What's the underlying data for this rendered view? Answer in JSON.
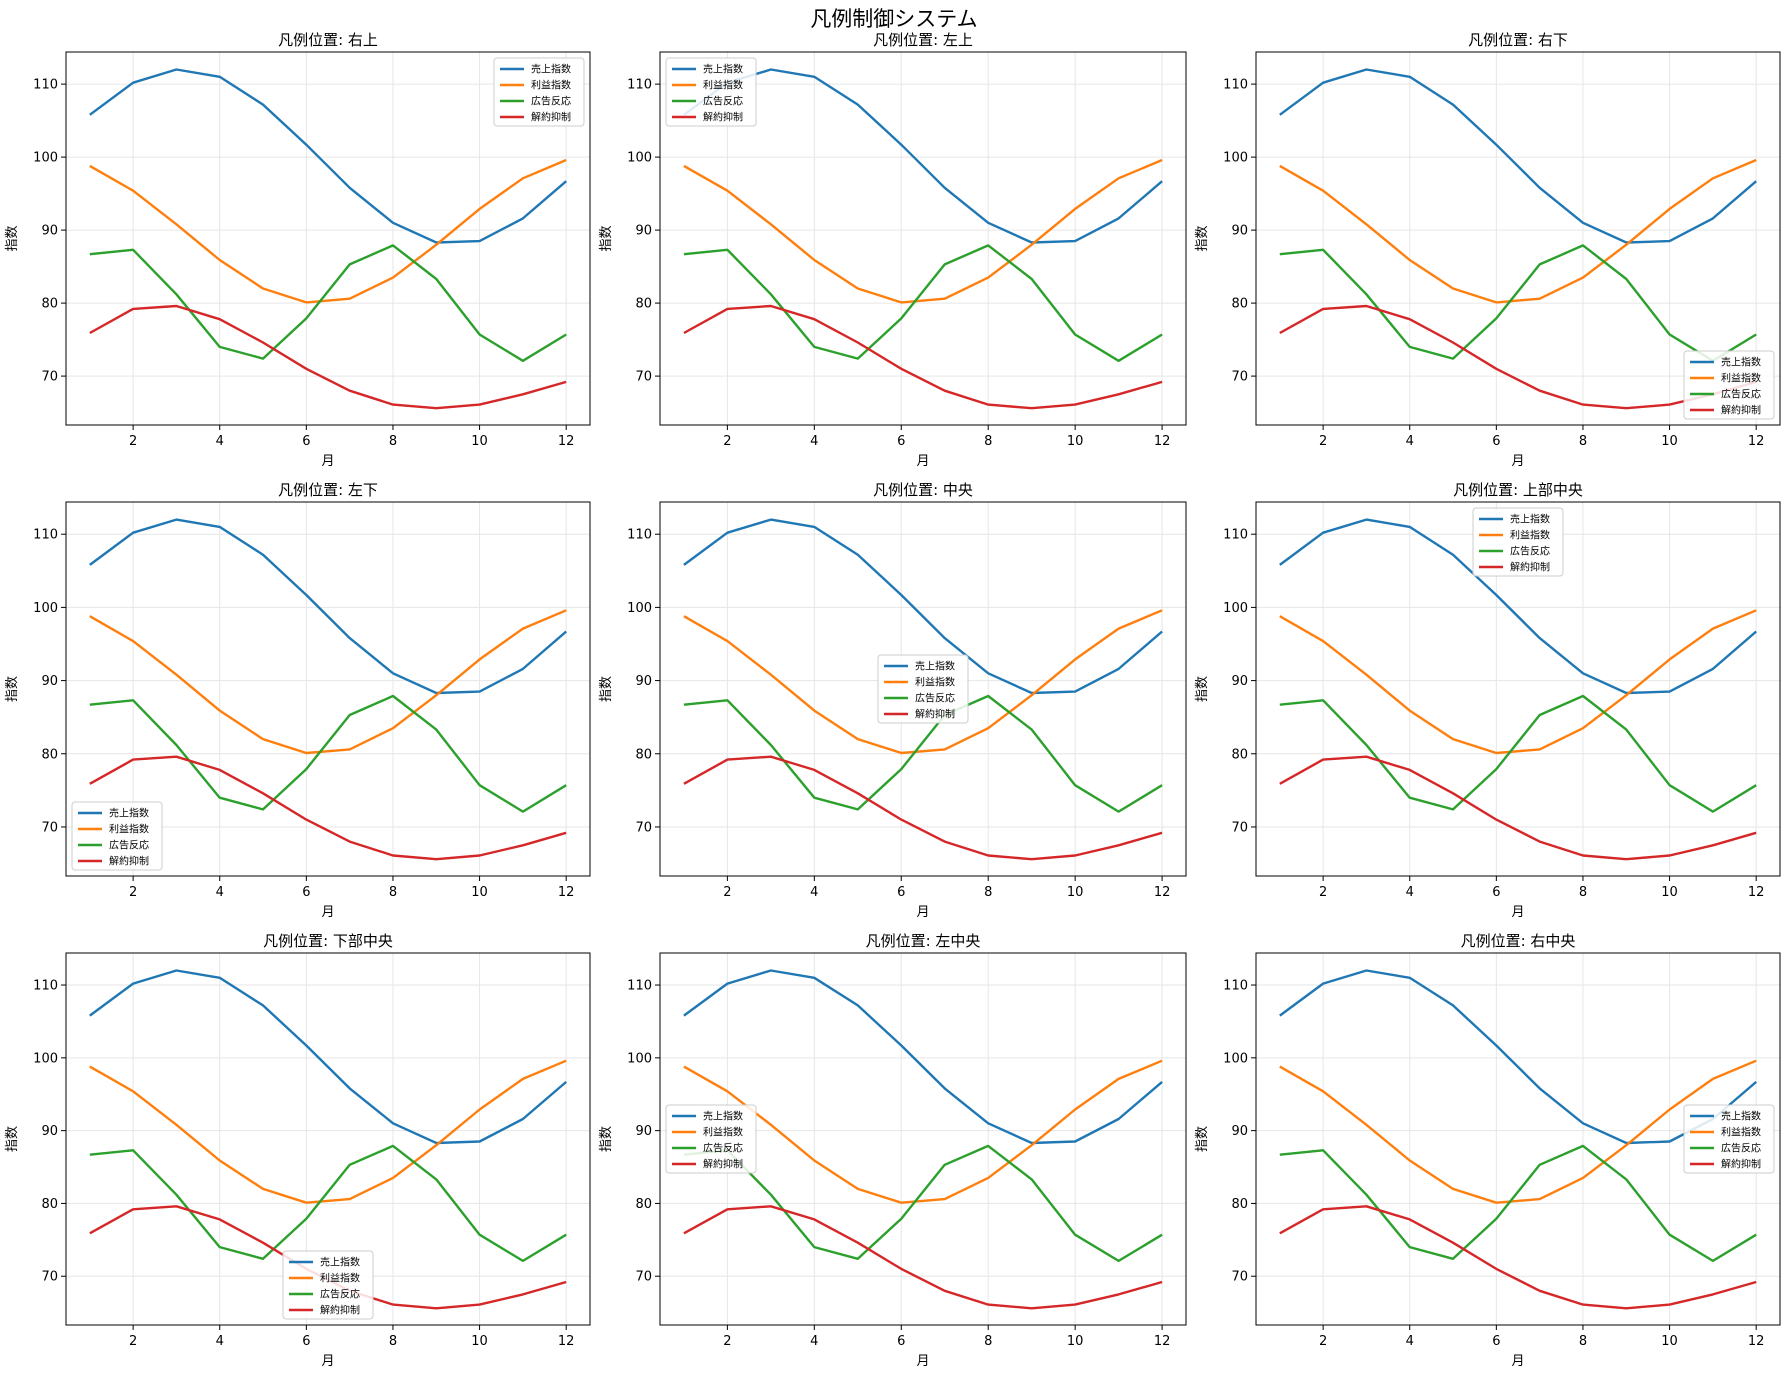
{
  "suptitle": "凡例制御システム",
  "colors": {
    "sales": "#1f77b4",
    "profit": "#ff7f0e",
    "ad": "#2ca02c",
    "churn": "#d62728",
    "grid": "#e6e6e6",
    "frame": "#000000"
  },
  "chart_data": [
    {
      "type": "line",
      "title": "凡例位置: 右上",
      "legend_loc": "upper right"
    },
    {
      "type": "line",
      "title": "凡例位置: 左上",
      "legend_loc": "upper left"
    },
    {
      "type": "line",
      "title": "凡例位置: 右下",
      "legend_loc": "lower right"
    },
    {
      "type": "line",
      "title": "凡例位置: 左下",
      "legend_loc": "lower left"
    },
    {
      "type": "line",
      "title": "凡例位置: 中央",
      "legend_loc": "center"
    },
    {
      "type": "line",
      "title": "凡例位置: 上部中央",
      "legend_loc": "upper center"
    },
    {
      "type": "line",
      "title": "凡例位置: 下部中央",
      "legend_loc": "lower center"
    },
    {
      "type": "line",
      "title": "凡例位置: 左中央",
      "legend_loc": "center left"
    },
    {
      "type": "line",
      "title": "凡例位置: 右中央",
      "legend_loc": "center right"
    }
  ],
  "shared": {
    "xlabel": "月",
    "ylabel": "指数",
    "x": [
      1,
      2,
      3,
      4,
      5,
      6,
      7,
      8,
      9,
      10,
      11,
      12
    ],
    "xlim": [
      0.45,
      12.55
    ],
    "ylim": [
      63.3,
      114.4
    ],
    "xticks": [
      2,
      4,
      6,
      8,
      10,
      12
    ],
    "yticks": [
      70,
      80,
      90,
      100,
      110
    ],
    "grid": true,
    "series": [
      {
        "name": "売上指数",
        "key": "sales",
        "values": [
          105.8,
          110.2,
          112.0,
          111.0,
          107.2,
          101.7,
          95.8,
          91.0,
          88.3,
          88.5,
          91.6,
          96.7
        ]
      },
      {
        "name": "利益指数",
        "key": "profit",
        "values": [
          98.8,
          95.4,
          90.8,
          85.9,
          82.0,
          80.1,
          80.6,
          83.5,
          88.0,
          92.9,
          97.1,
          99.6
        ]
      },
      {
        "name": "広告反応",
        "key": "ad",
        "values": [
          86.7,
          87.3,
          81.2,
          74.0,
          72.4,
          77.9,
          85.3,
          87.9,
          83.3,
          75.7,
          72.1,
          75.7
        ]
      },
      {
        "name": "解約抑制",
        "key": "churn",
        "values": [
          75.9,
          79.2,
          79.6,
          77.8,
          74.6,
          71.0,
          68.0,
          66.1,
          65.6,
          66.1,
          67.5,
          69.2
        ]
      }
    ]
  }
}
